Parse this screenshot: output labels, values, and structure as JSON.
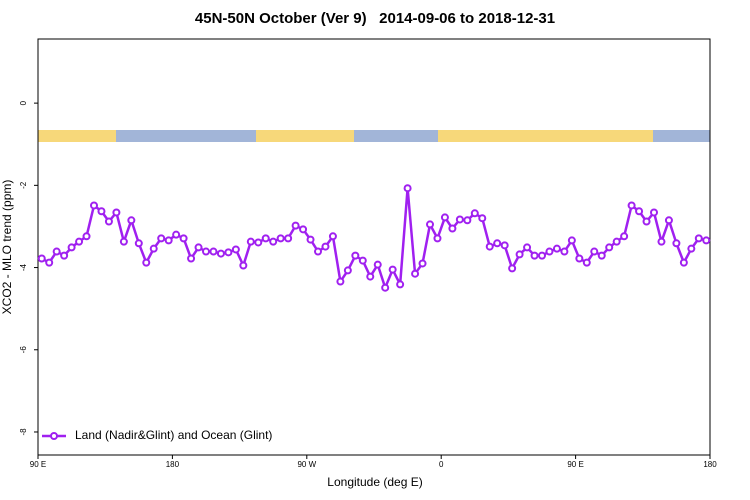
{
  "chart_data": {
    "type": "line",
    "title": "45N-50N October (Ver 9)   2014-09-06 to 2018-12-31",
    "x_label": "Longitude (deg E)",
    "y_label": "XCO2 - MLO trend (ppm)",
    "xlim": [
      90,
      540
    ],
    "xticks": [
      {
        "value": 90,
        "label": "90 E"
      },
      180,
      {
        "value": 270,
        "label": "90 W"
      },
      {
        "value": 360,
        "label": "0"
      },
      {
        "value": 450,
        "label": "90 E"
      },
      {
        "value": 540,
        "label": "180"
      }
    ],
    "ylim": [
      -8.56,
      1.56
    ],
    "yticks": [
      -8,
      -6,
      -4,
      -2,
      0
    ],
    "legend": "bottom-left",
    "x": [
      92.5,
      97.5,
      102.5,
      107.5,
      112.5,
      117.5,
      122.5,
      127.5,
      132.5,
      137.5,
      142.5,
      147.5,
      152.5,
      157.5,
      162.5,
      167.5,
      172.5,
      177.5,
      182.5,
      187.5,
      192.5,
      197.5,
      202.5,
      207.5,
      212.5,
      217.5,
      222.5,
      227.5,
      232.5,
      237.5,
      242.5,
      247.5,
      252.5,
      257.5,
      262.5,
      267.5,
      272.5,
      277.5,
      282.5,
      287.5,
      292.5,
      297.5,
      302.5,
      307.5,
      312.5,
      317.5,
      322.5,
      327.5,
      332.5,
      337.5,
      342.5,
      347.5,
      352.5,
      357.5,
      362.5,
      367.5,
      372.5,
      377.5,
      382.5,
      387.5,
      392.5,
      397.5,
      402.5,
      407.5,
      412.5,
      417.5,
      422.5,
      427.5,
      432.5,
      437.5,
      442.5,
      447.5,
      452.5,
      457.5,
      462.5,
      467.5,
      472.5,
      477.5,
      482.5,
      487.5,
      492.5,
      497.5,
      502.5,
      507.5,
      512.5,
      517.5,
      522.5,
      527.5,
      532.5,
      537.5
    ],
    "series": [
      {
        "name": "Land (Nadir&Glint) and Ocean (Glint)",
        "color": "#a020f0",
        "values": [
          -3.78,
          -3.88,
          -3.61,
          -3.71,
          -3.51,
          -3.37,
          -3.24,
          -2.49,
          -2.63,
          -2.88,
          -2.66,
          -3.37,
          -2.85,
          -3.41,
          -3.88,
          -3.54,
          -3.29,
          -3.34,
          -3.2,
          -3.29,
          -3.78,
          -3.51,
          -3.61,
          -3.61,
          -3.66,
          -3.63,
          -3.56,
          -3.95,
          -3.37,
          -3.39,
          -3.29,
          -3.37,
          -3.29,
          -3.29,
          -2.98,
          -3.07,
          -3.32,
          -3.61,
          -3.49,
          -3.24,
          -4.34,
          -4.07,
          -3.71,
          -3.83,
          -4.22,
          -3.93,
          -4.49,
          -4.05,
          -4.41,
          -2.07,
          -4.15,
          -3.9,
          -2.95,
          -3.29,
          -2.78,
          -3.05,
          -2.83,
          -2.85,
          -2.68,
          -2.8,
          -3.49,
          -3.41,
          -3.46,
          -4.02,
          -3.68,
          -3.51,
          -3.71,
          -3.71,
          -3.61,
          -3.54,
          -3.61,
          -3.34,
          -3.78,
          -3.88,
          -3.61,
          -3.71,
          -3.51,
          -3.37,
          -3.24,
          -2.49,
          -2.63,
          -2.88,
          -2.66,
          -3.37,
          -2.85,
          -3.41,
          -3.88,
          -3.54,
          -3.29,
          -3.34
        ]
      }
    ]
  }
}
